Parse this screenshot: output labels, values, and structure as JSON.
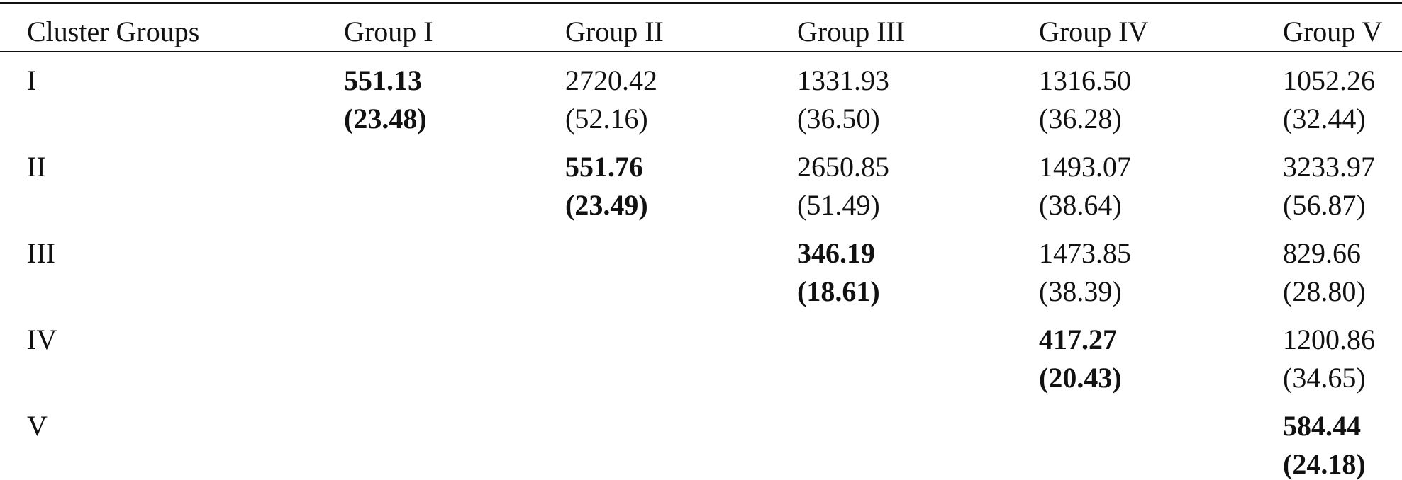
{
  "table": {
    "header": [
      "Cluster Groups",
      "Group I",
      "Group II",
      "Group III",
      "Group IV",
      "Group V"
    ],
    "rows": [
      {
        "label": "I",
        "cells": [
          {
            "value": "551.13",
            "sd": "(23.48)"
          },
          {
            "value": "2720.42",
            "sd": "(52.16)"
          },
          {
            "value": "1331.93",
            "sd": "(36.50)"
          },
          {
            "value": "1316.50",
            "sd": "(36.28)"
          },
          {
            "value": "1052.26",
            "sd": "(32.44)"
          }
        ]
      },
      {
        "label": "II",
        "cells": [
          null,
          {
            "value": "551.76",
            "sd": "(23.49)"
          },
          {
            "value": "2650.85",
            "sd": "(51.49)"
          },
          {
            "value": "1493.07",
            "sd": "(38.64)"
          },
          {
            "value": "3233.97",
            "sd": "(56.87)"
          }
        ]
      },
      {
        "label": "III",
        "cells": [
          null,
          null,
          {
            "value": "346.19",
            "sd": "(18.61)"
          },
          {
            "value": "1473.85",
            "sd": "(38.39)"
          },
          {
            "value": "829.66",
            "sd": "(28.80)"
          }
        ]
      },
      {
        "label": "IV",
        "cells": [
          null,
          null,
          null,
          {
            "value": "417.27",
            "sd": "(20.43)"
          },
          {
            "value": "1200.86",
            "sd": "(34.65)"
          }
        ]
      },
      {
        "label": "V",
        "cells": [
          null,
          null,
          null,
          null,
          {
            "value": "584.44",
            "sd": "(24.18)"
          }
        ]
      }
    ]
  }
}
